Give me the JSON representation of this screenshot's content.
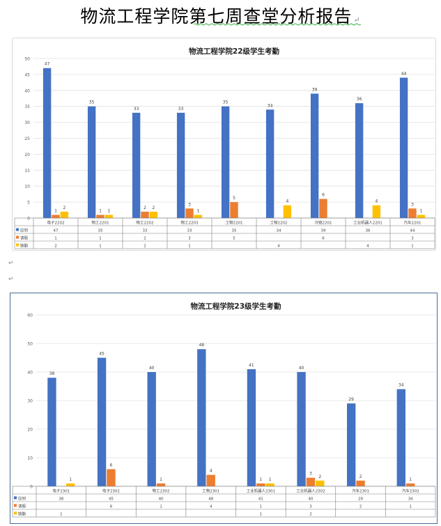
{
  "document": {
    "title": "物流工程学院第七周查堂分析报告",
    "paragraph_mark": "↵"
  },
  "colors": {
    "attend": "#4472c4",
    "leave": "#ed7d31",
    "absent": "#ffc000",
    "grid": "#e0e0e0",
    "axis": "#bfbfbf"
  },
  "chart_data": [
    {
      "type": "bar",
      "title": "物流工程学院22级学生考勤",
      "ylim": [
        0,
        50
      ],
      "yticks": [
        0,
        5,
        10,
        15,
        20,
        25,
        30,
        35,
        40,
        45,
        50
      ],
      "categories": [
        "电子2202",
        "物工2201",
        "物工2202",
        "物工2203",
        "工物2201",
        "工物2202",
        "冷链2201",
        "工业机器人2201",
        "汽车2201"
      ],
      "series": [
        {
          "name": "应到",
          "color": "#4472c4",
          "values": [
            47,
            35,
            33,
            33,
            35,
            34,
            39,
            36,
            44
          ]
        },
        {
          "name": "请假",
          "color": "#ed7d31",
          "values": [
            1,
            1,
            2,
            3,
            5,
            null,
            6,
            null,
            3
          ]
        },
        {
          "name": "缺勤",
          "color": "#ffc000",
          "values": [
            2,
            1,
            2,
            1,
            null,
            4,
            null,
            4,
            1
          ]
        }
      ],
      "legend": "table"
    },
    {
      "type": "bar",
      "title": "物流工程学院23级学生考勤",
      "ylim": [
        0,
        60
      ],
      "yticks": [
        0,
        10,
        20,
        30,
        40,
        50,
        60
      ],
      "categories": [
        "电子2301",
        "电子2302",
        "物工2302",
        "工物2301",
        "工业机器人2301",
        "工业机器人2302",
        "汽车2301",
        "汽车2302"
      ],
      "series": [
        {
          "name": "应到",
          "color": "#4472c4",
          "values": [
            38,
            45,
            40,
            48,
            41,
            40,
            29,
            34
          ]
        },
        {
          "name": "请假",
          "color": "#ed7d31",
          "values": [
            null,
            6,
            1,
            4,
            1,
            3,
            2,
            1
          ]
        },
        {
          "name": "缺勤",
          "color": "#ffc000",
          "values": [
            1,
            null,
            null,
            null,
            1,
            2,
            null,
            null
          ]
        }
      ],
      "legend": "table"
    }
  ]
}
